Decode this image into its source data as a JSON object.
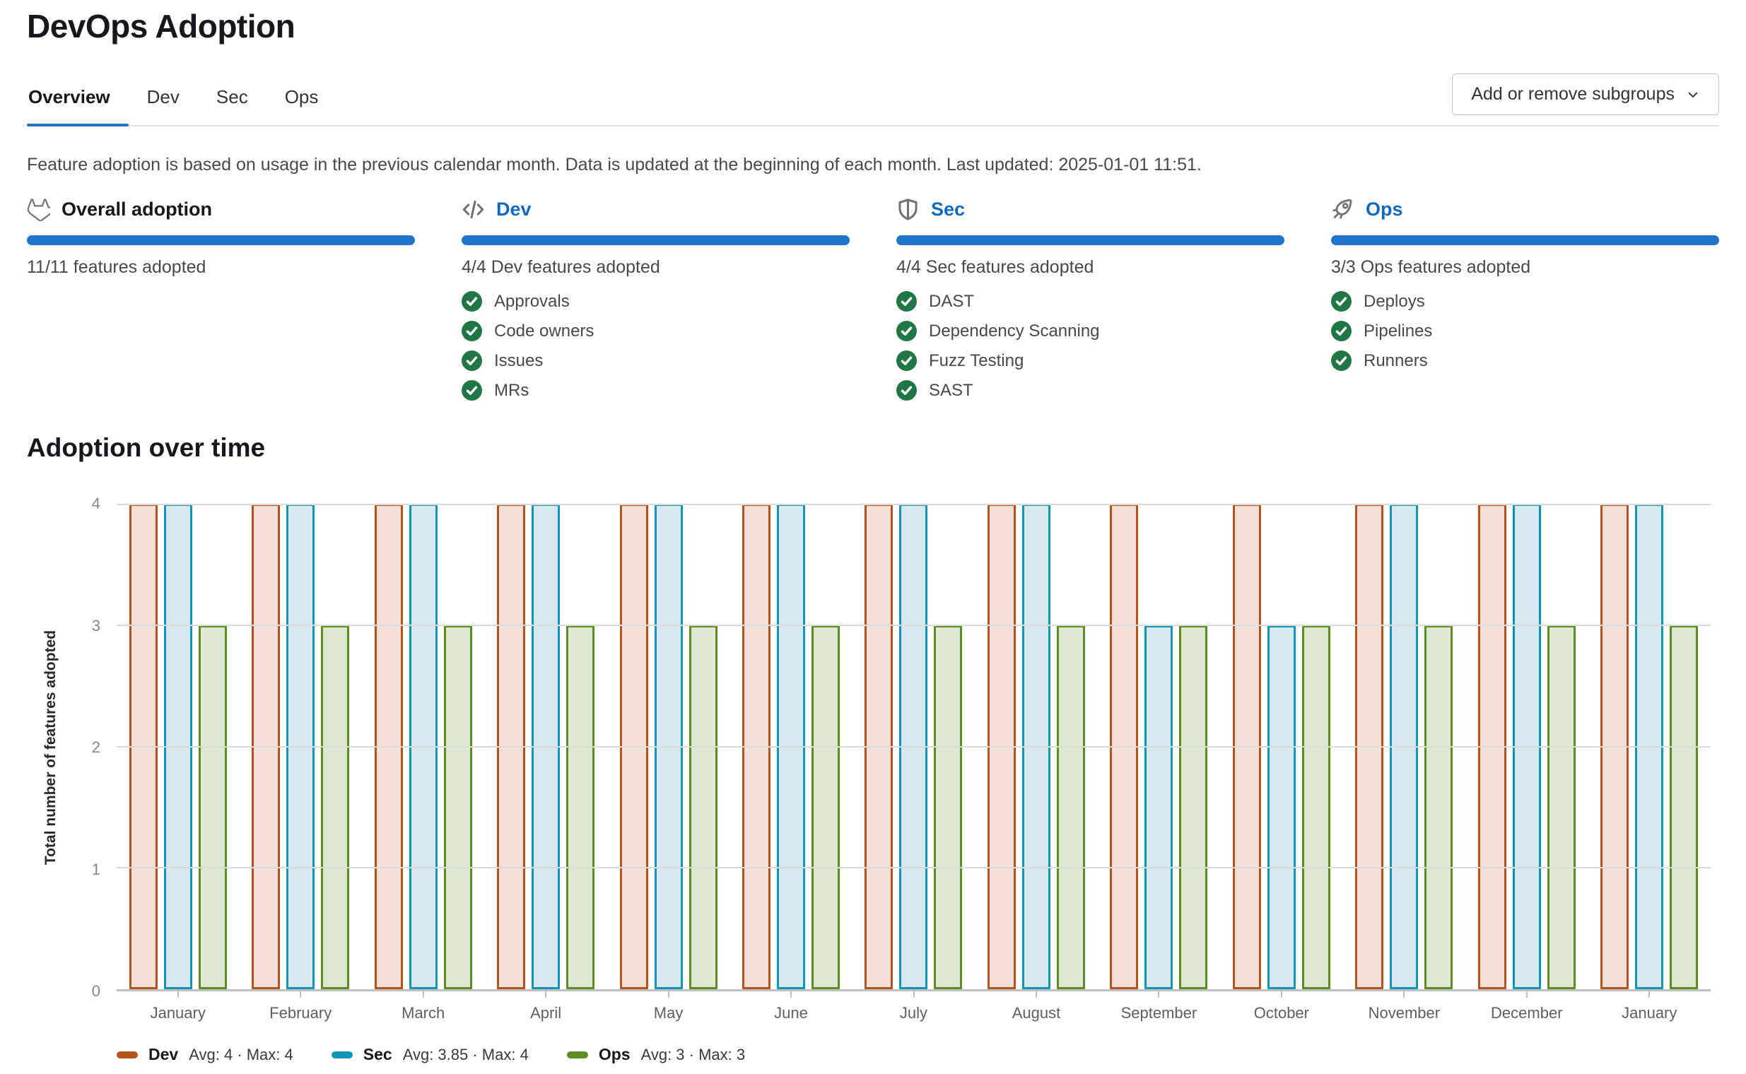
{
  "page": {
    "title": "DevOps Adoption"
  },
  "tabs": [
    {
      "label": "Overview",
      "active": true
    },
    {
      "label": "Dev",
      "active": false
    },
    {
      "label": "Sec",
      "active": false
    },
    {
      "label": "Ops",
      "active": false
    }
  ],
  "toolbar": {
    "add_remove_label": "Add or remove subgroups",
    "chevron_icon": "chevron-down-icon"
  },
  "description": "Feature adoption is based on usage in the previous calendar month. Data is updated at the beginning of each month. Last updated: 2025-01-01 11:51.",
  "cards": [
    {
      "icon": "tanuki-icon",
      "title": "Overall adoption",
      "link": false,
      "progress_label": "11/11 features adopted",
      "features": []
    },
    {
      "icon": "code-icon",
      "title": "Dev",
      "link": true,
      "progress_label": "4/4 Dev features adopted",
      "features": [
        "Approvals",
        "Code owners",
        "Issues",
        "MRs"
      ]
    },
    {
      "icon": "shield-icon",
      "title": "Sec",
      "link": true,
      "progress_label": "4/4 Sec features adopted",
      "features": [
        "DAST",
        "Dependency Scanning",
        "Fuzz Testing",
        "SAST"
      ]
    },
    {
      "icon": "rocket-icon",
      "title": "Ops",
      "link": true,
      "progress_label": "3/3 Ops features adopted",
      "features": [
        "Deploys",
        "Pipelines",
        "Runners"
      ]
    }
  ],
  "feature_check_icon": "check-circle-icon",
  "section": {
    "title": "Adoption over time"
  },
  "chart_data": {
    "type": "bar",
    "title": "Adoption over time",
    "xlabel": "",
    "ylabel": "Total number of features adopted",
    "ylim": [
      0,
      4
    ],
    "yticks": [
      0,
      1,
      2,
      3,
      4
    ],
    "grid": true,
    "legend_position": "bottom",
    "categories": [
      "January",
      "February",
      "March",
      "April",
      "May",
      "June",
      "July",
      "August",
      "September",
      "October",
      "November",
      "December",
      "January"
    ],
    "series": [
      {
        "name": "Dev",
        "color": "#b5531c",
        "fill": "#f4e0d6",
        "values": [
          4,
          4,
          4,
          4,
          4,
          4,
          4,
          4,
          4,
          4,
          4,
          4,
          4
        ],
        "legend_stats": "Avg: 4 · Max: 4"
      },
      {
        "name": "Sec",
        "color": "#0f96b6",
        "fill": "#d8e8ef",
        "values": [
          4,
          4,
          4,
          4,
          4,
          4,
          4,
          4,
          3,
          3,
          4,
          4,
          4
        ],
        "legend_stats": "Avg: 3.85 · Max: 4"
      },
      {
        "name": "Ops",
        "color": "#5d8c21",
        "fill": "#dde7d1",
        "values": [
          3,
          3,
          3,
          3,
          3,
          3,
          3,
          3,
          3,
          3,
          3,
          3,
          3
        ],
        "legend_stats": "Avg: 3 · Max: 3"
      }
    ]
  },
  "colors": {
    "accent": "#1f75cb",
    "link": "#1068bf",
    "success": "#217645",
    "text_primary": "#18171d",
    "text_secondary": "#49474e"
  }
}
